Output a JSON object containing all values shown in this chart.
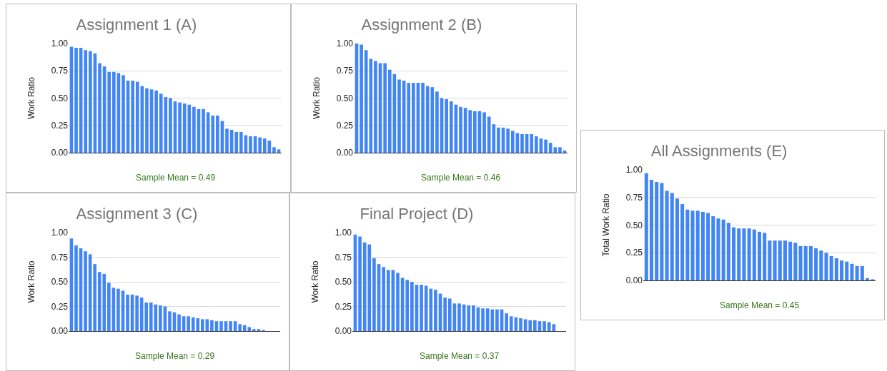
{
  "chart_data": [
    {
      "type": "bar",
      "title": "Assignment 1 (A)",
      "ylabel": "Work Ratio",
      "color": "#4285f4",
      "grid": "y",
      "ylim": [
        0,
        1
      ],
      "yticks": [
        {
          "value": 0,
          "label": "0.00"
        },
        {
          "value": 0.25,
          "label": "0.25"
        },
        {
          "value": 0.5,
          "label": "0.50"
        },
        {
          "value": 0.75,
          "label": "0.75"
        },
        {
          "value": 1,
          "label": "1.00"
        }
      ],
      "annotations": [
        "Sample Mean = 0.49"
      ],
      "categories": [
        null,
        null,
        null,
        null,
        null,
        null,
        null,
        null,
        null,
        null,
        null,
        null,
        null,
        null,
        null,
        null,
        null,
        null,
        null,
        null,
        null,
        null,
        null,
        null,
        null,
        null,
        null,
        null,
        null,
        null,
        null,
        null,
        null,
        null,
        null,
        null,
        null,
        null,
        null,
        null,
        null,
        null,
        null,
        null,
        null
      ],
      "values": [
        0.97,
        0.96,
        0.96,
        0.94,
        0.93,
        0.91,
        0.82,
        0.79,
        0.74,
        0.74,
        0.73,
        0.71,
        0.66,
        0.66,
        0.65,
        0.61,
        0.59,
        0.58,
        0.57,
        0.54,
        0.51,
        0.5,
        0.47,
        0.46,
        0.45,
        0.44,
        0.42,
        0.4,
        0.4,
        0.37,
        0.34,
        0.34,
        0.29,
        0.22,
        0.21,
        0.19,
        0.19,
        0.16,
        0.15,
        0.15,
        0.14,
        0.13,
        0.11,
        0.05,
        0.03
      ]
    },
    {
      "type": "bar",
      "title": "Assignment 2 (B)",
      "ylabel": "Work Ratio",
      "color": "#4285f4",
      "grid": "y",
      "ylim": [
        0,
        1
      ],
      "yticks": [
        {
          "value": 0,
          "label": "0.00"
        },
        {
          "value": 0.25,
          "label": "0.25"
        },
        {
          "value": 0.5,
          "label": "0.50"
        },
        {
          "value": 0.75,
          "label": "0.75"
        },
        {
          "value": 1,
          "label": "1.00"
        }
      ],
      "annotations": [
        "Sample Mean = 0.46"
      ],
      "categories": [
        null,
        null,
        null,
        null,
        null,
        null,
        null,
        null,
        null,
        null,
        null,
        null,
        null,
        null,
        null,
        null,
        null,
        null,
        null,
        null,
        null,
        null,
        null,
        null,
        null,
        null,
        null,
        null,
        null,
        null,
        null,
        null,
        null,
        null,
        null,
        null,
        null,
        null,
        null,
        null,
        null,
        null,
        null,
        null,
        null
      ],
      "values": [
        1.0,
        0.99,
        0.94,
        0.86,
        0.84,
        0.82,
        0.82,
        0.76,
        0.72,
        0.67,
        0.66,
        0.64,
        0.64,
        0.64,
        0.64,
        0.61,
        0.6,
        0.56,
        0.5,
        0.49,
        0.47,
        0.44,
        0.42,
        0.41,
        0.39,
        0.38,
        0.38,
        0.37,
        0.33,
        0.26,
        0.23,
        0.23,
        0.22,
        0.2,
        0.18,
        0.17,
        0.17,
        0.17,
        0.15,
        0.13,
        0.12,
        0.09,
        0.05,
        0.05,
        0.02
      ]
    },
    {
      "type": "bar",
      "title": "Assignment 3 (C)",
      "ylabel": "Work Ratio",
      "color": "#4285f4",
      "grid": "y",
      "ylim": [
        0,
        1
      ],
      "yticks": [
        {
          "value": 0,
          "label": "0.00"
        },
        {
          "value": 0.25,
          "label": "0.25"
        },
        {
          "value": 0.5,
          "label": "0.50"
        },
        {
          "value": 0.75,
          "label": "0.75"
        },
        {
          "value": 1,
          "label": "1.00"
        }
      ],
      "annotations": [
        "Sample Mean = 0.29"
      ],
      "categories": [
        null,
        null,
        null,
        null,
        null,
        null,
        null,
        null,
        null,
        null,
        null,
        null,
        null,
        null,
        null,
        null,
        null,
        null,
        null,
        null,
        null,
        null,
        null,
        null,
        null,
        null,
        null,
        null,
        null,
        null,
        null,
        null,
        null,
        null,
        null,
        null,
        null,
        null,
        null,
        null,
        null,
        null,
        null,
        null,
        null
      ],
      "values": [
        0.94,
        0.87,
        0.84,
        0.81,
        0.78,
        0.68,
        0.6,
        0.58,
        0.49,
        0.44,
        0.43,
        0.41,
        0.37,
        0.37,
        0.36,
        0.34,
        0.29,
        0.29,
        0.27,
        0.26,
        0.25,
        0.2,
        0.19,
        0.17,
        0.15,
        0.15,
        0.14,
        0.13,
        0.12,
        0.12,
        0.11,
        0.1,
        0.1,
        0.1,
        0.1,
        0.1,
        0.07,
        0.06,
        0.04,
        0.02,
        0.02,
        0.01,
        0,
        0,
        0
      ]
    },
    {
      "type": "bar",
      "title": "Final Project (D)",
      "ylabel": "Work Ratio",
      "color": "#4285f4",
      "grid": "y",
      "ylim": [
        0,
        1
      ],
      "yticks": [
        {
          "value": 0,
          "label": "0.00"
        },
        {
          "value": 0.25,
          "label": "0.25"
        },
        {
          "value": 0.5,
          "label": "0.50"
        },
        {
          "value": 0.75,
          "label": "0.75"
        },
        {
          "value": 1,
          "label": "1.00"
        }
      ],
      "annotations": [
        "Sample Mean = 0.37"
      ],
      "categories": [
        null,
        null,
        null,
        null,
        null,
        null,
        null,
        null,
        null,
        null,
        null,
        null,
        null,
        null,
        null,
        null,
        null,
        null,
        null,
        null,
        null,
        null,
        null,
        null,
        null,
        null,
        null,
        null,
        null,
        null,
        null,
        null,
        null,
        null,
        null,
        null,
        null,
        null,
        null,
        null,
        null,
        null,
        null,
        null,
        null
      ],
      "values": [
        0.98,
        0.96,
        0.9,
        0.88,
        0.74,
        0.68,
        0.65,
        0.62,
        0.62,
        0.59,
        0.54,
        0.52,
        0.5,
        0.47,
        0.47,
        0.46,
        0.43,
        0.42,
        0.38,
        0.34,
        0.33,
        0.28,
        0.28,
        0.27,
        0.26,
        0.26,
        0.24,
        0.23,
        0.23,
        0.22,
        0.22,
        0.22,
        0.18,
        0.15,
        0.14,
        0.13,
        0.12,
        0.11,
        0.11,
        0.1,
        0.1,
        0.09,
        0.07,
        0,
        0
      ]
    },
    {
      "type": "bar",
      "title": "All Assignments (E)",
      "ylabel": "Total Work Ratio",
      "color": "#4285f4",
      "grid": "y",
      "ylim": [
        0,
        1
      ],
      "yticks": [
        {
          "value": 0,
          "label": "0.00"
        },
        {
          "value": 0.25,
          "label": "0.25"
        },
        {
          "value": 0.5,
          "label": "0.50"
        },
        {
          "value": 0.75,
          "label": "0.75"
        },
        {
          "value": 1,
          "label": "1.00"
        }
      ],
      "annotations": [
        "Sample Mean = 0.45"
      ],
      "categories": [
        null,
        null,
        null,
        null,
        null,
        null,
        null,
        null,
        null,
        null,
        null,
        null,
        null,
        null,
        null,
        null,
        null,
        null,
        null,
        null,
        null,
        null,
        null,
        null,
        null,
        null,
        null,
        null,
        null,
        null,
        null,
        null,
        null,
        null,
        null,
        null,
        null,
        null,
        null,
        null,
        null,
        null,
        null,
        null,
        null
      ],
      "values": [
        0.97,
        0.91,
        0.89,
        0.88,
        0.81,
        0.79,
        0.74,
        0.69,
        0.64,
        0.63,
        0.63,
        0.62,
        0.61,
        0.58,
        0.56,
        0.55,
        0.52,
        0.48,
        0.47,
        0.47,
        0.47,
        0.46,
        0.44,
        0.43,
        0.36,
        0.36,
        0.36,
        0.36,
        0.35,
        0.34,
        0.31,
        0.31,
        0.31,
        0.29,
        0.27,
        0.25,
        0.22,
        0.2,
        0.18,
        0.17,
        0.15,
        0.13,
        0.13,
        0.02,
        0.01
      ]
    }
  ]
}
